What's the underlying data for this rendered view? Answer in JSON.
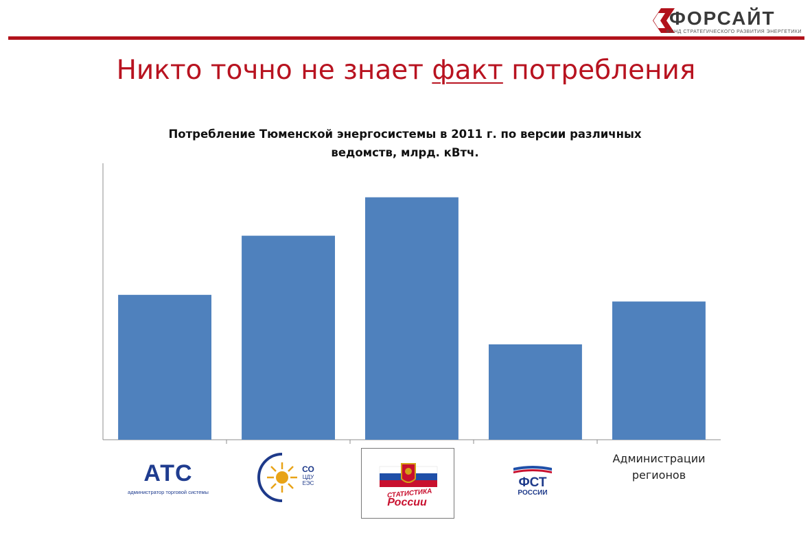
{
  "header": {
    "brand_name": "ФОРСАЙТ",
    "brand_subtitle": "ФОНД СТРАТЕГИЧЕСКОГО РАЗВИТИЯ ЭНЕРГЕТИКИ",
    "accent_color": "#b1121b"
  },
  "title": {
    "before": "Никто точно не знает ",
    "emphasis": "факт",
    "after": " потребления"
  },
  "chart_data": {
    "type": "bar",
    "title": "Потребление Тюменской энергосистемы в 2011 г. по версии различных\nведомств, млрд. кВтч.",
    "categories": [
      "АТС — администратор торговой системы",
      "СО ЦДУ ЕЭС",
      "Статистика России",
      "ФСТ России",
      "Администрации регионов"
    ],
    "values": [
      52.4,
      73.8,
      87.7,
      34.5,
      50.0
    ],
    "ylim": [
      0,
      100
    ],
    "grid": false,
    "legend": "none",
    "bar_color": "#4f81bd",
    "xlabel": "",
    "ylabel": ""
  },
  "category_labels": {
    "regions": "Администрации\nрегионов"
  },
  "logos": {
    "ats": {
      "mark": "АТС",
      "caption": "администратор торговой системы",
      "color": "#1f3c8f"
    },
    "so_ups": {
      "line1": "СО",
      "line2": "ЦДУ",
      "line3": "ЕЭС",
      "color": "#1e3a8a"
    },
    "rosstat": {
      "word1": "СТАТИСТИКА",
      "word2": "России",
      "color": "#c8102e"
    },
    "fst": {
      "mark": "ФСТ",
      "line2": "РОССИИ",
      "color": "#1e3a8a"
    }
  }
}
